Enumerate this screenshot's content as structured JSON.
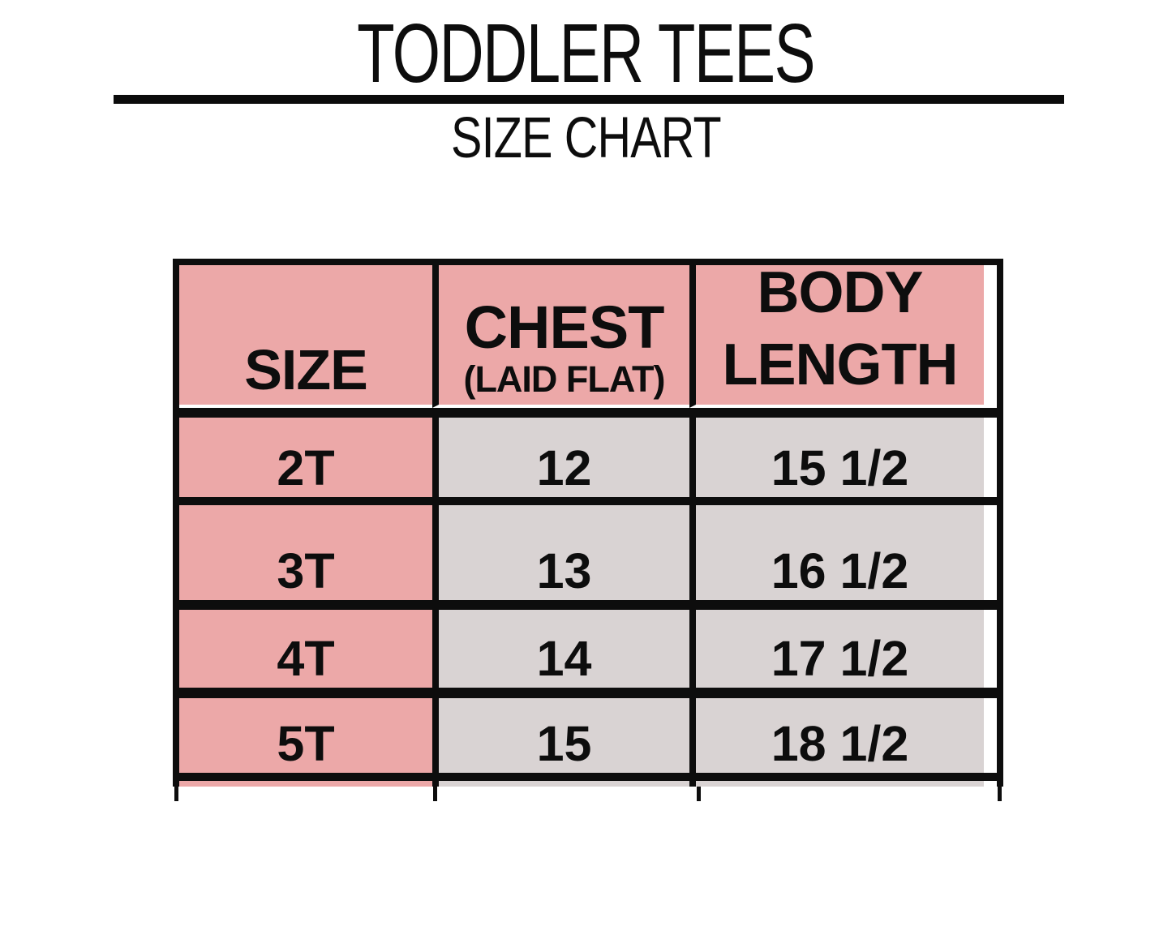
{
  "title": "TODDLER TEES",
  "subtitle": "SIZE CHART",
  "table": {
    "header": {
      "size": "SIZE",
      "chest_line1": "CHEST",
      "chest_line2": "(LAID FLAT)",
      "body_line1": "BODY",
      "body_line2": "LENGTH"
    }
  },
  "chart_data": {
    "type": "table",
    "title": "TODDLER TEES",
    "subtitle": "SIZE CHART",
    "columns": [
      "SIZE",
      "CHEST (LAID FLAT)",
      "BODY LENGTH"
    ],
    "rows": [
      [
        "2T",
        "12",
        "15 1/2"
      ],
      [
        "3T",
        "13",
        "16 1/2"
      ],
      [
        "4T",
        "14",
        "17 1/2"
      ],
      [
        "5T",
        "15",
        "18 1/2"
      ]
    ]
  },
  "colors": {
    "header_bg": "#eca8a8",
    "size_column_bg": "#eca8a8",
    "data_cell_bg": "#d9d3d3",
    "border": "#0d0d0d",
    "background": "#ffffff",
    "text": "#0d0d0d"
  }
}
